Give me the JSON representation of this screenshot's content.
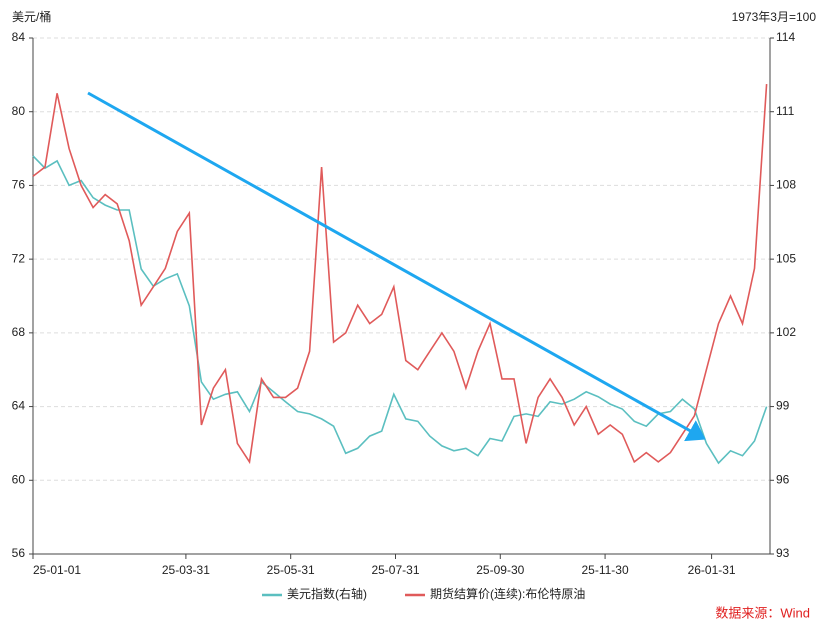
{
  "chart_data": {
    "type": "line",
    "y_label": "美元/桶",
    "y2_label": "1973年3月=100",
    "source": "数据来源：Wind",
    "x": [
      "2025-01-01",
      "2025-01-08",
      "2025-01-15",
      "2025-01-22",
      "2025-01-29",
      "2025-02-05",
      "2025-02-12",
      "2025-02-19",
      "2025-02-26",
      "2025-03-05",
      "2025-03-12",
      "2025-03-19",
      "2025-03-26",
      "2025-04-02",
      "2025-04-09",
      "2025-04-16",
      "2025-04-23",
      "2025-04-30",
      "2025-05-07",
      "2025-05-14",
      "2025-05-21",
      "2025-05-28",
      "2025-06-04",
      "2025-06-11",
      "2025-06-18",
      "2025-06-25",
      "2025-07-02",
      "2025-07-09",
      "2025-07-16",
      "2025-07-23",
      "2025-07-30",
      "2025-08-06",
      "2025-08-13",
      "2025-08-20",
      "2025-08-27",
      "2025-09-03",
      "2025-09-10",
      "2025-09-17",
      "2025-09-24",
      "2025-10-01",
      "2025-10-08",
      "2025-10-15",
      "2025-10-22",
      "2025-10-29",
      "2025-11-05",
      "2025-11-12",
      "2025-11-19",
      "2025-11-26",
      "2025-12-03",
      "2025-12-10",
      "2025-12-17",
      "2025-12-24",
      "2025-12-31",
      "2026-01-07",
      "2026-01-14",
      "2026-01-21",
      "2026-01-28",
      "2026-02-04",
      "2026-02-11",
      "2026-02-18",
      "2026-02-25",
      "2026-03-04"
    ],
    "series": [
      {
        "name": "美元指数(右轴)",
        "color": "#5bbfc0",
        "axis": "y2",
        "values": [
          109.2,
          108.7,
          109,
          108,
          108.2,
          107.5,
          107.2,
          107,
          107,
          104.6,
          103.9,
          104.2,
          104.4,
          103.1,
          100,
          99.3,
          99.5,
          99.6,
          98.8,
          100,
          99.6,
          99.2,
          98.8,
          98.7,
          98.5,
          98.2,
          97.1,
          97.3,
          97.8,
          98,
          99.5,
          98.5,
          98.4,
          97.8,
          97.4,
          97.2,
          97.3,
          97,
          97.7,
          97.6,
          98.6,
          98.7,
          98.6,
          99.2,
          99.1,
          99.3,
          99.6,
          99.4,
          99.1,
          98.9,
          98.4,
          98.2,
          98.7,
          98.8,
          99.3,
          98.9,
          97.5,
          96.7,
          97.2,
          97,
          97.6,
          99
        ]
      },
      {
        "name": "期货结算价(连续):布伦特原油",
        "color": "#e05a5a",
        "values": [
          76.5,
          77,
          81,
          78,
          76,
          74.8,
          75.5,
          75,
          73,
          69.5,
          70.5,
          71.5,
          73.5,
          74.5,
          63,
          65,
          66,
          62,
          61,
          65.5,
          64.5,
          64.5,
          65,
          67,
          77,
          67.5,
          68,
          69.5,
          68.5,
          69,
          70.5,
          66.5,
          66,
          67,
          68,
          67,
          65,
          67,
          68.5,
          65.5,
          65.5,
          62,
          64.5,
          65.5,
          64.5,
          63,
          64,
          62.5,
          63,
          62.5,
          61,
          61.5,
          61,
          61.5,
          62.5,
          63.5,
          66,
          68.5,
          70,
          68.5,
          71.5,
          81.5
        ]
      }
    ],
    "xlim": [
      "2025-01-01",
      "2026-03-06"
    ],
    "xticks": [
      {
        "value": "2025-01-01",
        "label": "25-01-01"
      },
      {
        "value": "2025-03-31",
        "label": "25-03-31"
      },
      {
        "value": "2025-05-31",
        "label": "25-05-31"
      },
      {
        "value": "2025-07-31",
        "label": "25-07-31"
      },
      {
        "value": "2025-09-30",
        "label": "25-09-30"
      },
      {
        "value": "2025-11-30",
        "label": "25-11-30"
      },
      {
        "value": "2026-01-31",
        "label": "26-01-31"
      }
    ],
    "ylim": [
      56,
      84
    ],
    "yticks": [
      56,
      60,
      64,
      68,
      72,
      76,
      80,
      84
    ],
    "y2lim": [
      93,
      114
    ],
    "y2ticks": [
      93,
      96,
      99,
      102,
      105,
      108,
      111,
      114
    ],
    "grid": true
  }
}
